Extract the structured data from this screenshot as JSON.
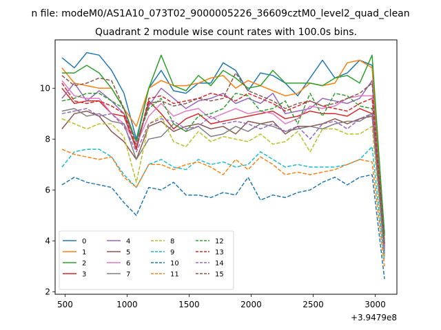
{
  "chart_data": {
    "type": "line",
    "suptitle": "n file: modeM0/AS1A10_073T02_9000005226_36609cztM0_level2_quad_clean",
    "title": "Quadrant 2 module wise count rates with 100.0s bins.",
    "xlabel": "",
    "ylabel": "",
    "x_offset_label": "+3.9479e8",
    "xlim": [
      420,
      3175
    ],
    "ylim": [
      1.9,
      11.9
    ],
    "xticks": [
      500,
      1000,
      1500,
      2000,
      2500,
      3000
    ],
    "yticks": [
      2,
      4,
      6,
      8,
      10
    ],
    "grid": false,
    "legend": {
      "placement": "lower-left",
      "columns": 4
    },
    "x": [
      475,
      575,
      675,
      775,
      875,
      975,
      1075,
      1175,
      1275,
      1375,
      1475,
      1575,
      1675,
      1775,
      1875,
      1975,
      2075,
      2175,
      2275,
      2375,
      2475,
      2575,
      2675,
      2775,
      2875,
      2975,
      3075
    ],
    "series": [
      {
        "name": "0",
        "color": "#1f77b4",
        "dash": "solid",
        "values": [
          11.2,
          10.8,
          11.4,
          11.3,
          10.7,
          9.8,
          8.0,
          10.0,
          10.7,
          9.9,
          9.8,
          10.2,
          10.2,
          11.0,
          10.7,
          9.9,
          10.6,
          10.5,
          10.2,
          9.7,
          10.4,
          11.1,
          10.4,
          10.6,
          11.1,
          10.9,
          4.3
        ]
      },
      {
        "name": "1",
        "color": "#ff7f0e",
        "dash": "solid",
        "values": [
          10.8,
          10.2,
          10.1,
          10.0,
          10.0,
          9.2,
          8.5,
          10.0,
          10.3,
          10.1,
          10.1,
          10.2,
          10.4,
          10.5,
          10.0,
          10.3,
          10.1,
          9.9,
          9.7,
          9.8,
          10.2,
          10.1,
          10.2,
          11.0,
          11.1,
          10.8,
          3.9
        ]
      },
      {
        "name": "2",
        "color": "#2ca02c",
        "dash": "solid",
        "values": [
          10.6,
          10.6,
          10.9,
          10.6,
          10.0,
          9.2,
          7.9,
          10.0,
          11.3,
          10.1,
          9.9,
          10.5,
          10.1,
          10.7,
          10.4,
          10.0,
          10.1,
          10.7,
          10.2,
          10.2,
          10.2,
          10.1,
          10.4,
          10.5,
          10.2,
          11.3,
          4.2
        ]
      },
      {
        "name": "3",
        "color": "#d62728",
        "dash": "solid",
        "values": [
          10.0,
          9.4,
          9.5,
          9.5,
          9.0,
          8.9,
          7.6,
          9.5,
          9.0,
          8.4,
          8.8,
          9.0,
          8.6,
          8.7,
          8.8,
          8.9,
          9.0,
          9.1,
          8.8,
          8.9,
          9.1,
          9.0,
          9.0,
          8.9,
          9.2,
          9.0,
          3.8
        ]
      },
      {
        "name": "4",
        "color": "#9467bd",
        "dash": "solid",
        "values": [
          9.6,
          10.2,
          9.5,
          9.9,
          9.5,
          9.0,
          7.9,
          9.3,
          10.0,
          9.6,
          9.2,
          9.5,
          9.6,
          9.8,
          9.4,
          9.6,
          9.4,
          9.8,
          9.0,
          9.1,
          9.2,
          9.6,
          9.5,
          9.4,
          9.6,
          10.3,
          3.7
        ]
      },
      {
        "name": "5",
        "color": "#8c564b",
        "dash": "solid",
        "values": [
          8.4,
          9.0,
          9.1,
          8.9,
          8.3,
          7.9,
          7.2,
          8.5,
          8.7,
          8.3,
          8.5,
          8.6,
          8.4,
          8.5,
          8.2,
          8.7,
          8.6,
          8.7,
          8.2,
          8.5,
          8.5,
          8.6,
          8.8,
          8.6,
          8.8,
          8.9,
          3.6
        ]
      },
      {
        "name": "6",
        "color": "#e377c2",
        "dash": "solid",
        "values": [
          10.3,
          9.7,
          9.6,
          9.6,
          9.0,
          8.6,
          7.8,
          8.9,
          9.4,
          8.9,
          9.1,
          9.2,
          8.8,
          9.0,
          9.2,
          9.0,
          9.1,
          9.0,
          8.6,
          8.8,
          9.3,
          9.2,
          9.3,
          9.6,
          9.7,
          9.7,
          3.5
        ]
      },
      {
        "name": "7",
        "color": "#7f7f7f",
        "dash": "solid",
        "values": [
          9.1,
          9.2,
          8.9,
          9.0,
          8.7,
          8.6,
          7.2,
          8.0,
          8.1,
          8.6,
          8.3,
          8.5,
          8.1,
          8.2,
          8.5,
          8.3,
          8.6,
          8.5,
          8.3,
          8.4,
          8.5,
          8.4,
          8.6,
          8.7,
          8.7,
          9.0,
          3.4
        ]
      },
      {
        "name": "8",
        "color": "#bcbd22",
        "dash": "dashed",
        "values": [
          8.8,
          8.6,
          8.4,
          8.6,
          8.6,
          8.1,
          6.3,
          8.6,
          8.9,
          7.9,
          7.7,
          8.3,
          7.9,
          8.1,
          8.0,
          7.9,
          8.2,
          7.8,
          7.9,
          8.3,
          7.5,
          8.4,
          8.4,
          8.2,
          8.2,
          8.5,
          3.3
        ]
      },
      {
        "name": "9",
        "color": "#17becf",
        "dash": "dashed",
        "values": [
          6.9,
          7.5,
          7.6,
          7.6,
          7.3,
          6.6,
          6.1,
          7.0,
          7.2,
          6.9,
          6.8,
          7.2,
          7.0,
          7.1,
          6.9,
          7.0,
          7.5,
          7.2,
          6.9,
          7.0,
          6.9,
          6.9,
          6.9,
          7.0,
          7.2,
          7.7,
          3.2
        ]
      },
      {
        "name": "10",
        "color": "#1f77b4",
        "dash": "dashed",
        "values": [
          6.2,
          6.5,
          6.3,
          6.2,
          6.1,
          5.5,
          5.0,
          6.1,
          6.0,
          6.3,
          5.8,
          5.8,
          5.7,
          5.9,
          5.8,
          6.5,
          5.6,
          5.8,
          5.7,
          5.9,
          6.0,
          6.3,
          6.5,
          6.2,
          6.5,
          6.6,
          2.5
        ]
      },
      {
        "name": "11",
        "color": "#ff7f0e",
        "dash": "dashed",
        "values": [
          7.6,
          7.4,
          7.3,
          7.2,
          7.3,
          6.5,
          6.1,
          7.0,
          7.0,
          6.8,
          7.0,
          7.1,
          6.9,
          6.6,
          7.2,
          6.8,
          7.3,
          7.0,
          6.6,
          6.7,
          6.6,
          6.7,
          6.8,
          7.0,
          7.2,
          7.1,
          3.0
        ]
      },
      {
        "name": "12",
        "color": "#2ca02c",
        "dash": "dashed",
        "values": [
          9.5,
          9.6,
          9.8,
          9.8,
          9.5,
          9.2,
          7.9,
          9.2,
          9.6,
          8.6,
          8.3,
          8.9,
          9.0,
          9.2,
          9.8,
          9.7,
          9.1,
          9.2,
          9.5,
          8.6,
          9.8,
          8.9,
          9.8,
          9.7,
          9.3,
          9.2,
          4.0
        ]
      },
      {
        "name": "13",
        "color": "#d62728",
        "dash": "dashed",
        "values": [
          10.2,
          9.5,
          9.4,
          9.5,
          9.3,
          9.0,
          7.6,
          9.6,
          9.7,
          9.4,
          9.5,
          9.6,
          9.8,
          9.7,
          9.5,
          9.8,
          9.6,
          9.4,
          9.1,
          9.3,
          9.5,
          9.3,
          9.2,
          9.1,
          9.4,
          9.6,
          3.8
        ]
      },
      {
        "name": "14",
        "color": "#9467bd",
        "dash": "dashed",
        "values": [
          9.0,
          9.1,
          9.2,
          8.9,
          9.0,
          8.5,
          7.5,
          8.6,
          8.8,
          8.7,
          8.4,
          8.5,
          8.9,
          8.6,
          8.7,
          8.6,
          8.4,
          8.6,
          8.3,
          8.5,
          8.0,
          8.6,
          8.7,
          8.4,
          8.8,
          9.0,
          3.5
        ]
      },
      {
        "name": "15",
        "color": "#8c564b",
        "dash": "dashed",
        "values": [
          10.5,
          10.1,
          10.2,
          10.4,
          10.3,
          9.2,
          7.7,
          9.4,
          9.5,
          9.3,
          9.4,
          9.6,
          9.5,
          9.6,
          10.6,
          9.9,
          9.7,
          9.5,
          9.2,
          9.4,
          9.5,
          9.3,
          9.4,
          9.6,
          9.8,
          10.2,
          3.9
        ]
      }
    ]
  }
}
